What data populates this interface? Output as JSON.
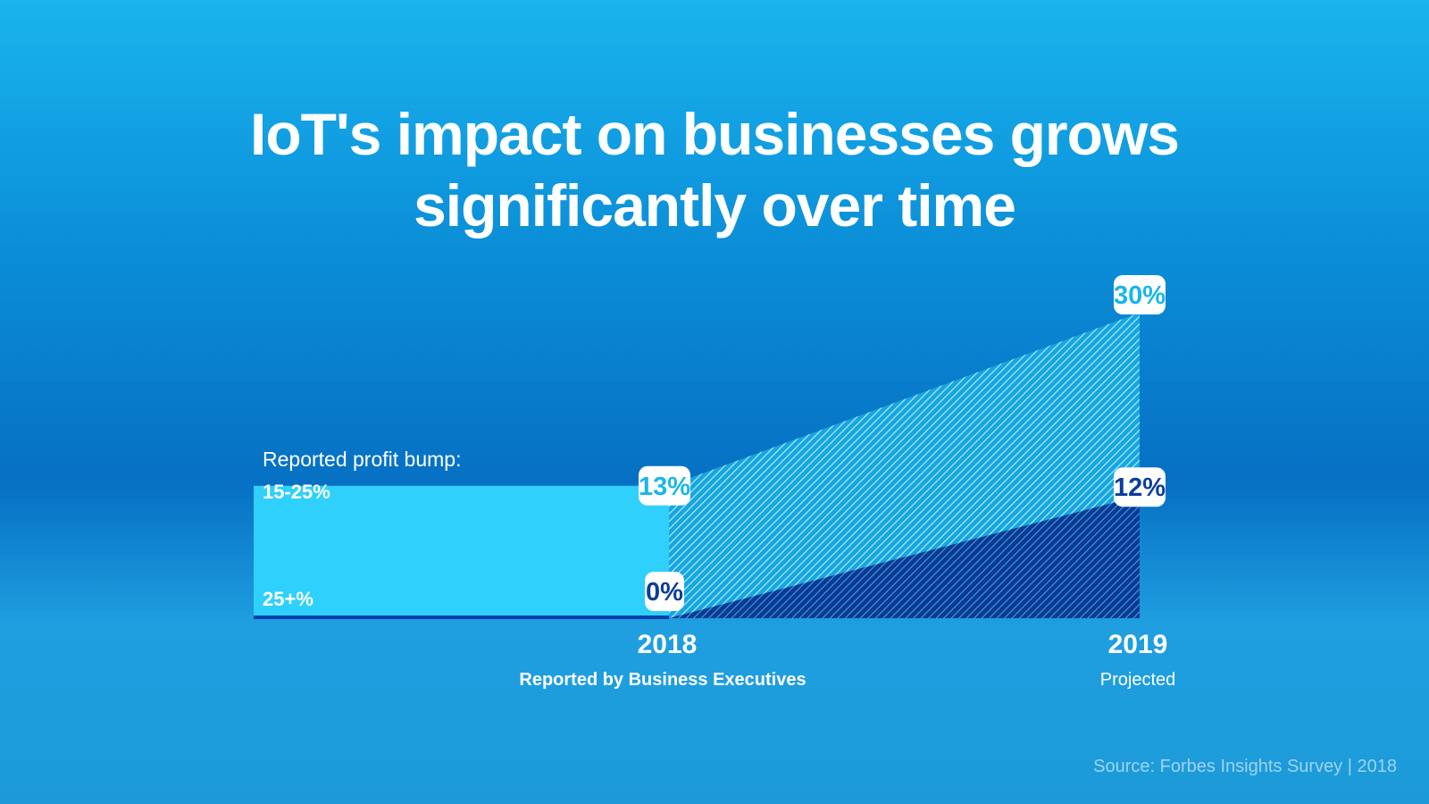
{
  "title": {
    "line1": "IoT's impact on businesses grows",
    "line2": "significantly over time"
  },
  "source": "Source: Forbes Insights Survey | 2018",
  "chart_data": {
    "type": "area",
    "legend_heading": "Reported profit bump:",
    "x": [
      "2018",
      "2019"
    ],
    "x_sublabels": [
      "Reported by Business Executives",
      "Projected"
    ],
    "series": [
      {
        "name": "15-25%",
        "values": [
          13,
          30
        ],
        "labels": [
          "13%",
          "30%"
        ],
        "color": "#2fd0fb"
      },
      {
        "name": "25+%",
        "values": [
          0,
          12
        ],
        "labels": [
          "0%",
          "12%"
        ],
        "color": "#0b3fa8"
      }
    ],
    "colors": {
      "light_label": "#19b6e6",
      "dark_label": "#0b3d9a"
    }
  }
}
